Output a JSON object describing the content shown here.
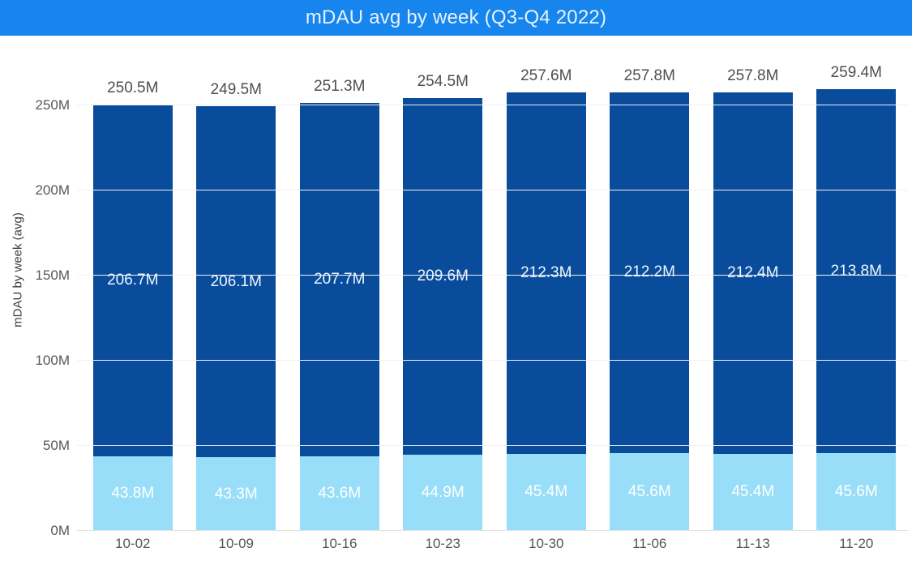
{
  "header": {
    "title": "mDAU avg by week (Q3-Q4 2022)"
  },
  "colors": {
    "header_bg": "#1685ee",
    "header_text": "#e8f2fc",
    "bar_dark": "#0a4c9c",
    "bar_light": "#99def8",
    "label_gray": "#4f4f4f"
  },
  "chart_data": {
    "type": "bar",
    "stacked": true,
    "title": "mDAU avg by week (Q3-Q4 2022)",
    "ylabel": "mDAU by week (avg)",
    "xlabel": "",
    "categories": [
      "10-02",
      "10-09",
      "10-16",
      "10-23",
      "10-30",
      "11-06",
      "11-13",
      "11-20"
    ],
    "series": [
      {
        "name": "lower-segment-light-blue",
        "color": "#99def8",
        "values": [
          43.8,
          43.3,
          43.6,
          44.9,
          45.4,
          45.6,
          45.4,
          45.6
        ]
      },
      {
        "name": "upper-segment-dark-blue",
        "color": "#0a4c9c",
        "values": [
          206.7,
          206.1,
          207.7,
          209.6,
          212.3,
          212.2,
          212.4,
          213.8
        ]
      }
    ],
    "totals": [
      250.5,
      249.5,
      251.3,
      254.5,
      257.6,
      257.8,
      257.8,
      259.4
    ],
    "value_suffix": "M",
    "y_ticks": [
      0,
      50,
      100,
      150,
      200,
      250
    ],
    "y_tick_labels": [
      "0M",
      "50M",
      "100M",
      "150M",
      "200M",
      "250M"
    ],
    "ylim": [
      0,
      291
    ],
    "grid": true,
    "legend": false
  }
}
